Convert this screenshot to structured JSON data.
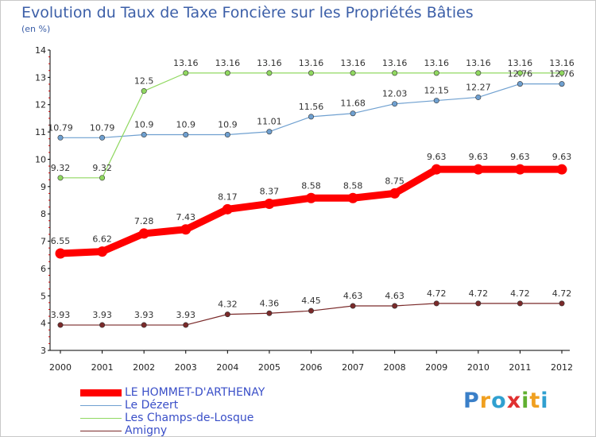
{
  "title": "Evolution du Taux de Taxe Foncière sur les Propriétés Bâties",
  "unit_label": "(en %)",
  "logo_text": "Proxiti",
  "chart_data": {
    "type": "line",
    "x": [
      "2000",
      "2001",
      "2002",
      "2003",
      "2004",
      "2005",
      "2006",
      "2007",
      "2008",
      "2009",
      "2010",
      "2011",
      "2012"
    ],
    "ylim": [
      3,
      14
    ],
    "yticks": [
      "3",
      "4",
      "5",
      "6",
      "7",
      "8",
      "9",
      "10",
      "11",
      "12",
      "13",
      "14"
    ],
    "grid": false,
    "legend": "bottom-left",
    "series": [
      {
        "name": "LE HOMMET-D'ARTHENAY",
        "color": "#ff0000",
        "values": [
          6.55,
          6.62,
          7.28,
          7.43,
          8.17,
          8.37,
          8.58,
          8.58,
          8.75,
          9.63,
          9.63,
          9.63,
          9.63
        ],
        "labels": [
          "6.55",
          "6.62",
          "7.28",
          "7.43",
          "8.17",
          "8.37",
          "8.58",
          "8.58",
          "8.75",
          "9.63",
          "9.63",
          "9.63",
          "9.63"
        ]
      },
      {
        "name": "Le Dézert",
        "color": "#6fa0d0",
        "values": [
          10.79,
          10.79,
          10.9,
          10.9,
          10.9,
          11.01,
          11.56,
          11.68,
          12.03,
          12.15,
          12.27,
          12.76,
          12.76
        ],
        "labels": [
          "10.79",
          "10.79",
          "10.9",
          "10.9",
          "10.9",
          "11.01",
          "11.56",
          "11.68",
          "12.03",
          "12.15",
          "12.27",
          "12.76",
          "12.76"
        ]
      },
      {
        "name": "Les Champs-de-Losque",
        "color": "#90d860",
        "values": [
          9.32,
          9.32,
          12.5,
          13.16,
          13.16,
          13.16,
          13.16,
          13.16,
          13.16,
          13.16,
          13.16,
          13.16,
          13.16
        ],
        "labels": [
          "9.32",
          "9.32",
          "12.5",
          "13.16",
          "13.16",
          "13.16",
          "13.16",
          "13.16",
          "13.16",
          "13.16",
          "13.16",
          "13.16",
          "13.16"
        ]
      },
      {
        "name": "Amigny",
        "color": "#7a2a2a",
        "values": [
          3.93,
          3.93,
          3.93,
          3.93,
          4.32,
          4.36,
          4.45,
          4.63,
          4.63,
          4.72,
          4.72,
          4.72,
          4.72
        ],
        "labels": [
          "3.93",
          "3.93",
          "3.93",
          "3.93",
          "4.32",
          "4.36",
          "4.45",
          "4.63",
          "4.63",
          "4.72",
          "4.72",
          "4.72",
          "4.72"
        ]
      }
    ]
  }
}
